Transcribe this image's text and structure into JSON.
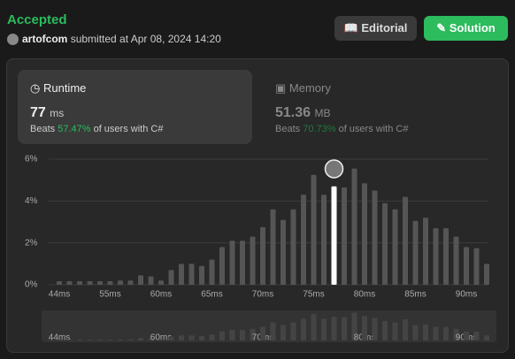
{
  "header": {
    "status": "Accepted",
    "user": "artofcom",
    "submitted": "submitted at Apr 08, 2024 14:20",
    "buttons": [
      "Editorial",
      "Solution"
    ]
  },
  "runtime": {
    "label": "Runtime",
    "value": "77",
    "unit": "ms",
    "beats": "Beats",
    "percent": "57.47%",
    "suffix": "of users with C#"
  },
  "memory": {
    "label": "Memory",
    "value": "51.36",
    "unit": "MB",
    "beats": "Beats",
    "percent": "70.73%",
    "suffix": "of users with C#"
  },
  "chart_data": {
    "type": "bar",
    "categories": [
      "44ms",
      null,
      null,
      null,
      null,
      "55ms",
      null,
      null,
      null,
      null,
      "60ms",
      null,
      null,
      null,
      null,
      "65ms",
      null,
      null,
      null,
      null,
      "70ms",
      null,
      null,
      null,
      null,
      "75ms",
      null,
      null,
      null,
      null,
      "80ms",
      null,
      null,
      null,
      null,
      "85ms",
      null,
      null,
      null,
      null,
      "90ms",
      null,
      null
    ],
    "values": [
      0.17,
      0.17,
      0.17,
      0.17,
      0.17,
      0.17,
      0.2,
      0.2,
      0.45,
      0.4,
      0.2,
      0.7,
      1.0,
      1.0,
      0.9,
      1.2,
      1.8,
      2.1,
      2.1,
      2.3,
      2.75,
      3.6,
      3.1,
      3.6,
      4.3,
      5.25,
      4.3,
      4.7,
      4.65,
      5.55,
      4.85,
      4.5,
      3.9,
      3.6,
      4.2,
      3.05,
      3.2,
      2.7,
      2.7,
      2.3,
      1.8,
      1.75,
      1.0
    ],
    "color": "#555555",
    "highlight_color": "#ffffff",
    "highlight_index": 27,
    "ylim": [
      0,
      6
    ],
    "yticks": [
      {
        "value": 0,
        "label": "0%"
      },
      {
        "value": 2,
        "label": "2%"
      },
      {
        "value": 4,
        "label": "4%"
      },
      {
        "value": 6,
        "label": "6%"
      }
    ],
    "grid": true
  }
}
